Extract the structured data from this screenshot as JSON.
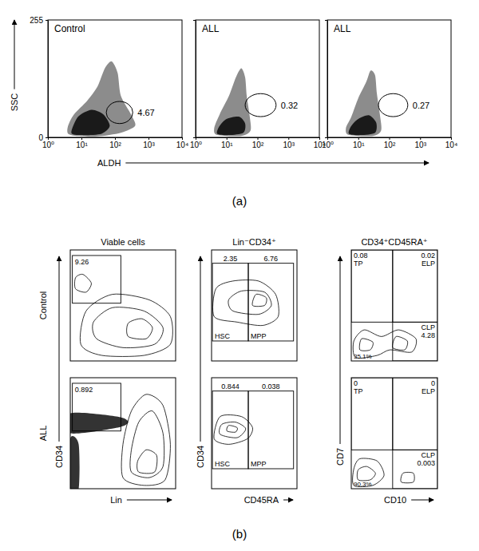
{
  "panel_labels": [
    "(a)",
    "(b)"
  ],
  "chart_data": [
    {
      "type": "dot_plot",
      "title": "Control",
      "xlabel": "ALDH",
      "ylabel": "SSC",
      "log": "x",
      "xlim": [
        1,
        10000
      ],
      "ylim": [
        0,
        255
      ],
      "xticks": [
        {
          "value": 1,
          "label": "10⁰"
        },
        {
          "value": 10,
          "label": "10¹"
        },
        {
          "value": 100,
          "label": "10²"
        },
        {
          "value": 1000,
          "label": "10³"
        },
        {
          "value": 10000,
          "label": "10⁴"
        }
      ],
      "yticks": [
        0,
        255
      ],
      "regions": [
        {
          "color": "#8c8c8c",
          "x": [
            4,
            8,
            30,
            150,
            400,
            300,
            150,
            120,
            80,
            50,
            30,
            15,
            6,
            4
          ],
          "y": [
            8,
            3,
            2,
            10,
            25,
            50,
            90,
            140,
            165,
            150,
            110,
            80,
            50,
            25
          ]
        },
        {
          "color": "#1a1a1a",
          "x": [
            5,
            10,
            40,
            70,
            45,
            20,
            8
          ],
          "y": [
            10,
            5,
            8,
            25,
            50,
            60,
            45
          ]
        }
      ],
      "gates": [
        {
          "x": [
            55,
            340
          ],
          "y": [
            30,
            78
          ],
          "value": 4.67
        }
      ]
    },
    {
      "type": "dot_plot",
      "title": "ALL",
      "log": "x",
      "tick_labels": "x",
      "xlim": [
        1,
        10000
      ],
      "ylim": [
        0,
        255
      ],
      "xticks": [
        {
          "value": 1,
          "label": "10⁰"
        },
        {
          "value": 10,
          "label": "10¹"
        },
        {
          "value": 100,
          "label": "10²"
        },
        {
          "value": 1000,
          "label": "10³"
        },
        {
          "value": 10000,
          "label": "10⁴"
        }
      ],
      "yticks": [
        0,
        255
      ],
      "regions": [
        {
          "color": "#8c8c8c",
          "x": [
            5,
            30,
            60,
            55,
            45,
            40,
            30,
            20,
            12,
            6,
            4
          ],
          "y": [
            5,
            3,
            15,
            50,
            90,
            130,
            150,
            130,
            90,
            50,
            20
          ]
        },
        {
          "color": "#1a1a1a",
          "x": [
            5,
            12,
            35,
            40,
            25,
            10,
            6
          ],
          "y": [
            8,
            5,
            10,
            30,
            45,
            40,
            25
          ]
        }
      ],
      "gates": [
        {
          "x": [
            40,
            400
          ],
          "y": [
            45,
            95
          ],
          "value": 0.32
        }
      ]
    },
    {
      "type": "dot_plot",
      "title": "ALL",
      "log": "x",
      "tick_labels": "x",
      "xlim": [
        1,
        10000
      ],
      "ylim": [
        0,
        255
      ],
      "xticks": [
        {
          "value": 1,
          "label": "10⁰"
        },
        {
          "value": 10,
          "label": "10¹"
        },
        {
          "value": 100,
          "label": "10²"
        },
        {
          "value": 1000,
          "label": "10³"
        },
        {
          "value": 10000,
          "label": "10⁴"
        }
      ],
      "yticks": [
        0,
        255
      ],
      "regions": [
        {
          "color": "#8c8c8c",
          "x": [
            5,
            30,
            55,
            50,
            40,
            35,
            25,
            18,
            10,
            6,
            4
          ],
          "y": [
            5,
            3,
            15,
            50,
            95,
            135,
            145,
            120,
            85,
            45,
            20
          ]
        },
        {
          "color": "#1a1a1a",
          "x": [
            5,
            12,
            35,
            38,
            22,
            10,
            6
          ],
          "y": [
            8,
            5,
            10,
            32,
            48,
            40,
            25
          ]
        }
      ],
      "gates": [
        {
          "x": [
            45,
            400
          ],
          "y": [
            45,
            95
          ],
          "value": 0.27
        }
      ]
    },
    {
      "type": "contour",
      "title": "Viable cells",
      "row_label": "Control",
      "tick_labels": false,
      "xlim": [
        0,
        100
      ],
      "ylim": [
        0,
        100
      ],
      "contours": [
        {
          "x": [
            10,
            30,
            70,
            95,
            95,
            75,
            40,
            15
          ],
          "y": [
            15,
            5,
            5,
            15,
            40,
            55,
            60,
            45
          ]
        },
        {
          "x": [
            25,
            50,
            80,
            88,
            70,
            40,
            22
          ],
          "y": [
            20,
            12,
            15,
            30,
            45,
            48,
            35
          ]
        },
        {
          "x": [
            55,
            72,
            78,
            68,
            55
          ],
          "y": [
            22,
            20,
            30,
            38,
            34
          ]
        },
        {
          "x": [
            5,
            15,
            20,
            12,
            5
          ],
          "y": [
            65,
            62,
            70,
            78,
            75
          ]
        }
      ],
      "gates": [
        {
          "x": [
            2,
            48
          ],
          "y": [
            52,
            95
          ],
          "value": 9.26
        }
      ]
    },
    {
      "type": "contour",
      "title": "Lin⁻CD34⁺",
      "tick_labels": false,
      "xlim": [
        0,
        100
      ],
      "ylim": [
        0,
        100
      ],
      "contours": [
        {
          "x": [
            3,
            30,
            60,
            78,
            75,
            55,
            25,
            5
          ],
          "y": [
            40,
            35,
            32,
            40,
            60,
            72,
            72,
            65
          ]
        },
        {
          "x": [
            25,
            55,
            70,
            62,
            35,
            20
          ],
          "y": [
            45,
            42,
            50,
            62,
            63,
            55
          ]
        },
        {
          "x": [
            48,
            62,
            64,
            52
          ],
          "y": [
            50,
            50,
            57,
            60
          ]
        }
      ],
      "gates": [
        {
          "x": [
            1,
            43
          ],
          "y": [
            18,
            88
          ],
          "value": 2.35,
          "name": "HSC"
        },
        {
          "x": [
            43,
            96
          ],
          "y": [
            18,
            88
          ],
          "value": 6.76,
          "name": "MPP"
        }
      ]
    },
    {
      "type": "contour",
      "title": "CD34⁺CD45RA⁺",
      "tick_labels": false,
      "xlim": [
        0,
        100
      ],
      "ylim": [
        0,
        100
      ],
      "contours": [
        {
          "x": [
            5,
            30,
            45,
            70,
            75,
            55,
            35,
            15,
            3
          ],
          "y": [
            3,
            5,
            10,
            8,
            20,
            28,
            22,
            28,
            18
          ]
        },
        {
          "x": [
            10,
            22,
            25,
            12
          ],
          "y": [
            10,
            10,
            17,
            20
          ]
        },
        {
          "x": [
            48,
            62,
            65,
            52
          ],
          "y": [
            12,
            10,
            18,
            22
          ]
        }
      ],
      "gates": [
        {
          "x": [
            0,
            48
          ],
          "y": [
            35,
            100
          ],
          "value": 0.08,
          "name": "TP"
        },
        {
          "x": [
            48,
            100
          ],
          "y": [
            35,
            100
          ],
          "value": 0.02,
          "name": "ELP"
        },
        {
          "x": [
            48,
            100
          ],
          "y": [
            0,
            35
          ],
          "value": 4.28,
          "name": "CLP"
        }
      ],
      "quadrant_label": {
        "value": 35.1,
        "label": "35.1%"
      }
    },
    {
      "type": "contour",
      "row_label": "ALL",
      "xlabel": "Lin",
      "ylabel": "CD34",
      "tick_labels": false,
      "xlim": [
        0,
        100
      ],
      "ylim": [
        0,
        100
      ],
      "regions": [
        {
          "color": "#333333",
          "x": [
            0,
            45,
            55,
            45,
            0
          ],
          "y": [
            50,
            55,
            60,
            65,
            68
          ]
        },
        {
          "color": "#333333",
          "x": [
            0,
            8,
            8,
            0
          ],
          "y": [
            0,
            0,
            40,
            45
          ]
        }
      ],
      "contours": [
        {
          "x": [
            50,
            70,
            90,
            95,
            88,
            72,
            58,
            50
          ],
          "y": [
            10,
            3,
            8,
            40,
            75,
            85,
            70,
            40
          ]
        },
        {
          "x": [
            58,
            75,
            88,
            88,
            78,
            65,
            58
          ],
          "y": [
            15,
            10,
            20,
            50,
            70,
            60,
            35
          ]
        },
        {
          "x": [
            65,
            80,
            82,
            72,
            64
          ],
          "y": [
            15,
            15,
            30,
            35,
            25
          ]
        }
      ],
      "gates": [
        {
          "x": [
            2,
            48
          ],
          "y": [
            52,
            95
          ],
          "value": 0.892
        }
      ]
    },
    {
      "type": "contour",
      "xlabel": "CD45RA",
      "ylabel": "CD34",
      "tick_labels": false,
      "xlim": [
        0,
        100
      ],
      "ylim": [
        0,
        100
      ],
      "contours": [
        {
          "x": [
            3,
            20,
            42,
            48,
            35,
            10
          ],
          "y": [
            45,
            40,
            45,
            55,
            65,
            65
          ]
        },
        {
          "x": [
            10,
            30,
            40,
            28,
            12
          ],
          "y": [
            49,
            46,
            54,
            60,
            58
          ]
        },
        {
          "x": [
            18,
            28,
            30,
            20
          ],
          "y": [
            52,
            51,
            55,
            57
          ]
        }
      ],
      "gates": [
        {
          "x": [
            1,
            43
          ],
          "y": [
            18,
            88
          ],
          "value": 0.844,
          "name": "HSC"
        },
        {
          "x": [
            43,
            96
          ],
          "y": [
            18,
            88
          ],
          "value": 0.038,
          "name": "MPP"
        }
      ]
    },
    {
      "type": "contour",
      "xlabel": "CD10",
      "ylabel": "CD7",
      "tick_labels": false,
      "xlim": [
        0,
        100
      ],
      "ylim": [
        0,
        100
      ],
      "contours": [
        {
          "x": [
            3,
            25,
            38,
            30,
            10,
            3
          ],
          "y": [
            3,
            3,
            12,
            25,
            27,
            18
          ]
        },
        {
          "x": [
            8,
            22,
            28,
            18,
            8
          ],
          "y": [
            8,
            8,
            14,
            20,
            17
          ]
        },
        {
          "x": [
            58,
            72,
            72,
            60
          ],
          "y": [
            6,
            6,
            14,
            14
          ]
        }
      ],
      "gates": [
        {
          "x": [
            0,
            48
          ],
          "y": [
            35,
            100
          ],
          "value": 0,
          "name": "TP"
        },
        {
          "x": [
            48,
            100
          ],
          "y": [
            35,
            100
          ],
          "value": 0,
          "name": "ELP"
        },
        {
          "x": [
            48,
            100
          ],
          "y": [
            0,
            35
          ],
          "value": 0.003,
          "name": "CLP"
        }
      ],
      "quadrant_label": {
        "value": 90.3,
        "label": "90.3%"
      }
    }
  ]
}
